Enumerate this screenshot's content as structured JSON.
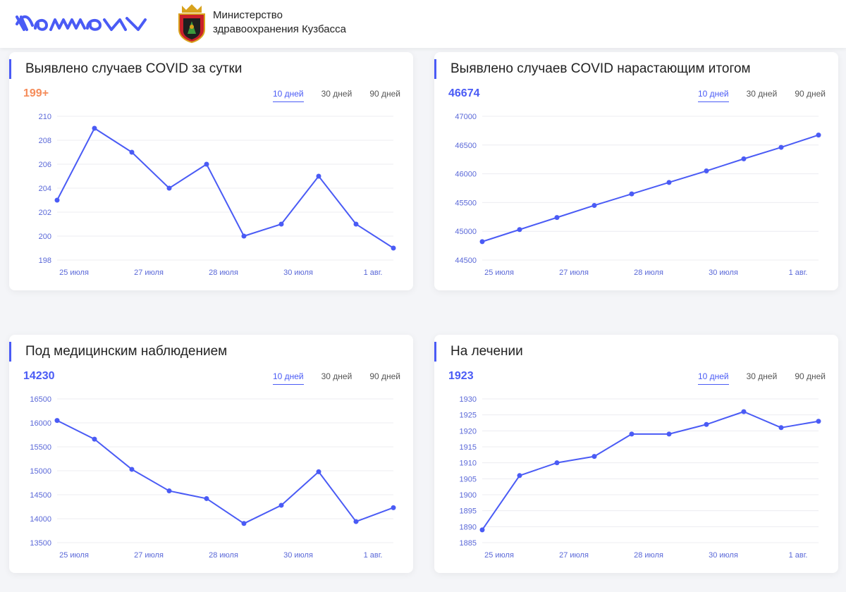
{
  "header": {
    "logo_alt": "Компот",
    "ministry_line1": "Министерство",
    "ministry_line2": "здравоохранения Кузбасса"
  },
  "accent_color": "#4a5bf5",
  "highlight_color": "#f58c5a",
  "cards": [
    {
      "title": "Выявлено случаев COVID за сутки",
      "value": "199+",
      "value_color": "orange",
      "tabs": [
        "10 дней",
        "30 дней",
        "90 дней"
      ],
      "active_tab": 0
    },
    {
      "title": "Выявлено случаев COVID нарастающим итогом",
      "value": "46674",
      "value_color": "blue",
      "tabs": [
        "10 дней",
        "30 дней",
        "90 дней"
      ],
      "active_tab": 0
    },
    {
      "title": "Под медицинским наблюдением",
      "value": "14230",
      "value_color": "blue",
      "tabs": [
        "10 дней",
        "30 дней",
        "90 дней"
      ],
      "active_tab": 0
    },
    {
      "title": "На лечении",
      "value": "1923",
      "value_color": "blue",
      "tabs": [
        "10 дней",
        "30 дней",
        "90 дней"
      ],
      "active_tab": 0
    }
  ],
  "chart_data": [
    {
      "type": "line",
      "title": "Выявлено случаев COVID за сутки",
      "x_ticks": [
        "25 июля",
        "27 июля",
        "28 июля",
        "30 июля",
        "1 авг."
      ],
      "x_tick_positions": [
        0,
        2,
        4,
        6,
        8
      ],
      "values": [
        203,
        209,
        207,
        204,
        206,
        200,
        201,
        205,
        201,
        199
      ],
      "y_ticks": [
        198,
        200,
        202,
        204,
        206,
        208,
        210
      ],
      "ylim": [
        198,
        210
      ],
      "grid": true
    },
    {
      "type": "line",
      "title": "Выявлено случаев COVID нарастающим итогом",
      "x_ticks": [
        "25 июля",
        "27 июля",
        "28 июля",
        "30 июля",
        "1 авг."
      ],
      "x_tick_positions": [
        0,
        2,
        4,
        6,
        8
      ],
      "values": [
        44820,
        45030,
        45240,
        45450,
        45650,
        45850,
        46050,
        46260,
        46460,
        46674
      ],
      "y_ticks": [
        44500,
        45000,
        45500,
        46000,
        46500,
        47000
      ],
      "ylim": [
        44500,
        47000
      ],
      "grid": true
    },
    {
      "type": "line",
      "title": "Под медицинским наблюдением",
      "x_ticks": [
        "25 июля",
        "27 июля",
        "28 июля",
        "30 июля",
        "1 авг."
      ],
      "x_tick_positions": [
        0,
        2,
        4,
        6,
        8
      ],
      "values": [
        16050,
        15660,
        15030,
        14580,
        14420,
        13900,
        14280,
        14980,
        13940,
        14230
      ],
      "y_ticks": [
        13500,
        14000,
        14500,
        15000,
        15500,
        16000,
        16500
      ],
      "ylim": [
        13500,
        16500
      ],
      "grid": true
    },
    {
      "type": "line",
      "title": "На лечении",
      "x_ticks": [
        "25 июля",
        "27 июля",
        "28 июля",
        "30 июля",
        "1 авг."
      ],
      "x_tick_positions": [
        0,
        2,
        4,
        6,
        8
      ],
      "values": [
        1889,
        1906,
        1910,
        1912,
        1919,
        1919,
        1922,
        1926,
        1921,
        1923
      ],
      "y_ticks": [
        1885,
        1890,
        1895,
        1900,
        1905,
        1910,
        1915,
        1920,
        1925,
        1930
      ],
      "ylim": [
        1885,
        1930
      ],
      "grid": true
    }
  ]
}
